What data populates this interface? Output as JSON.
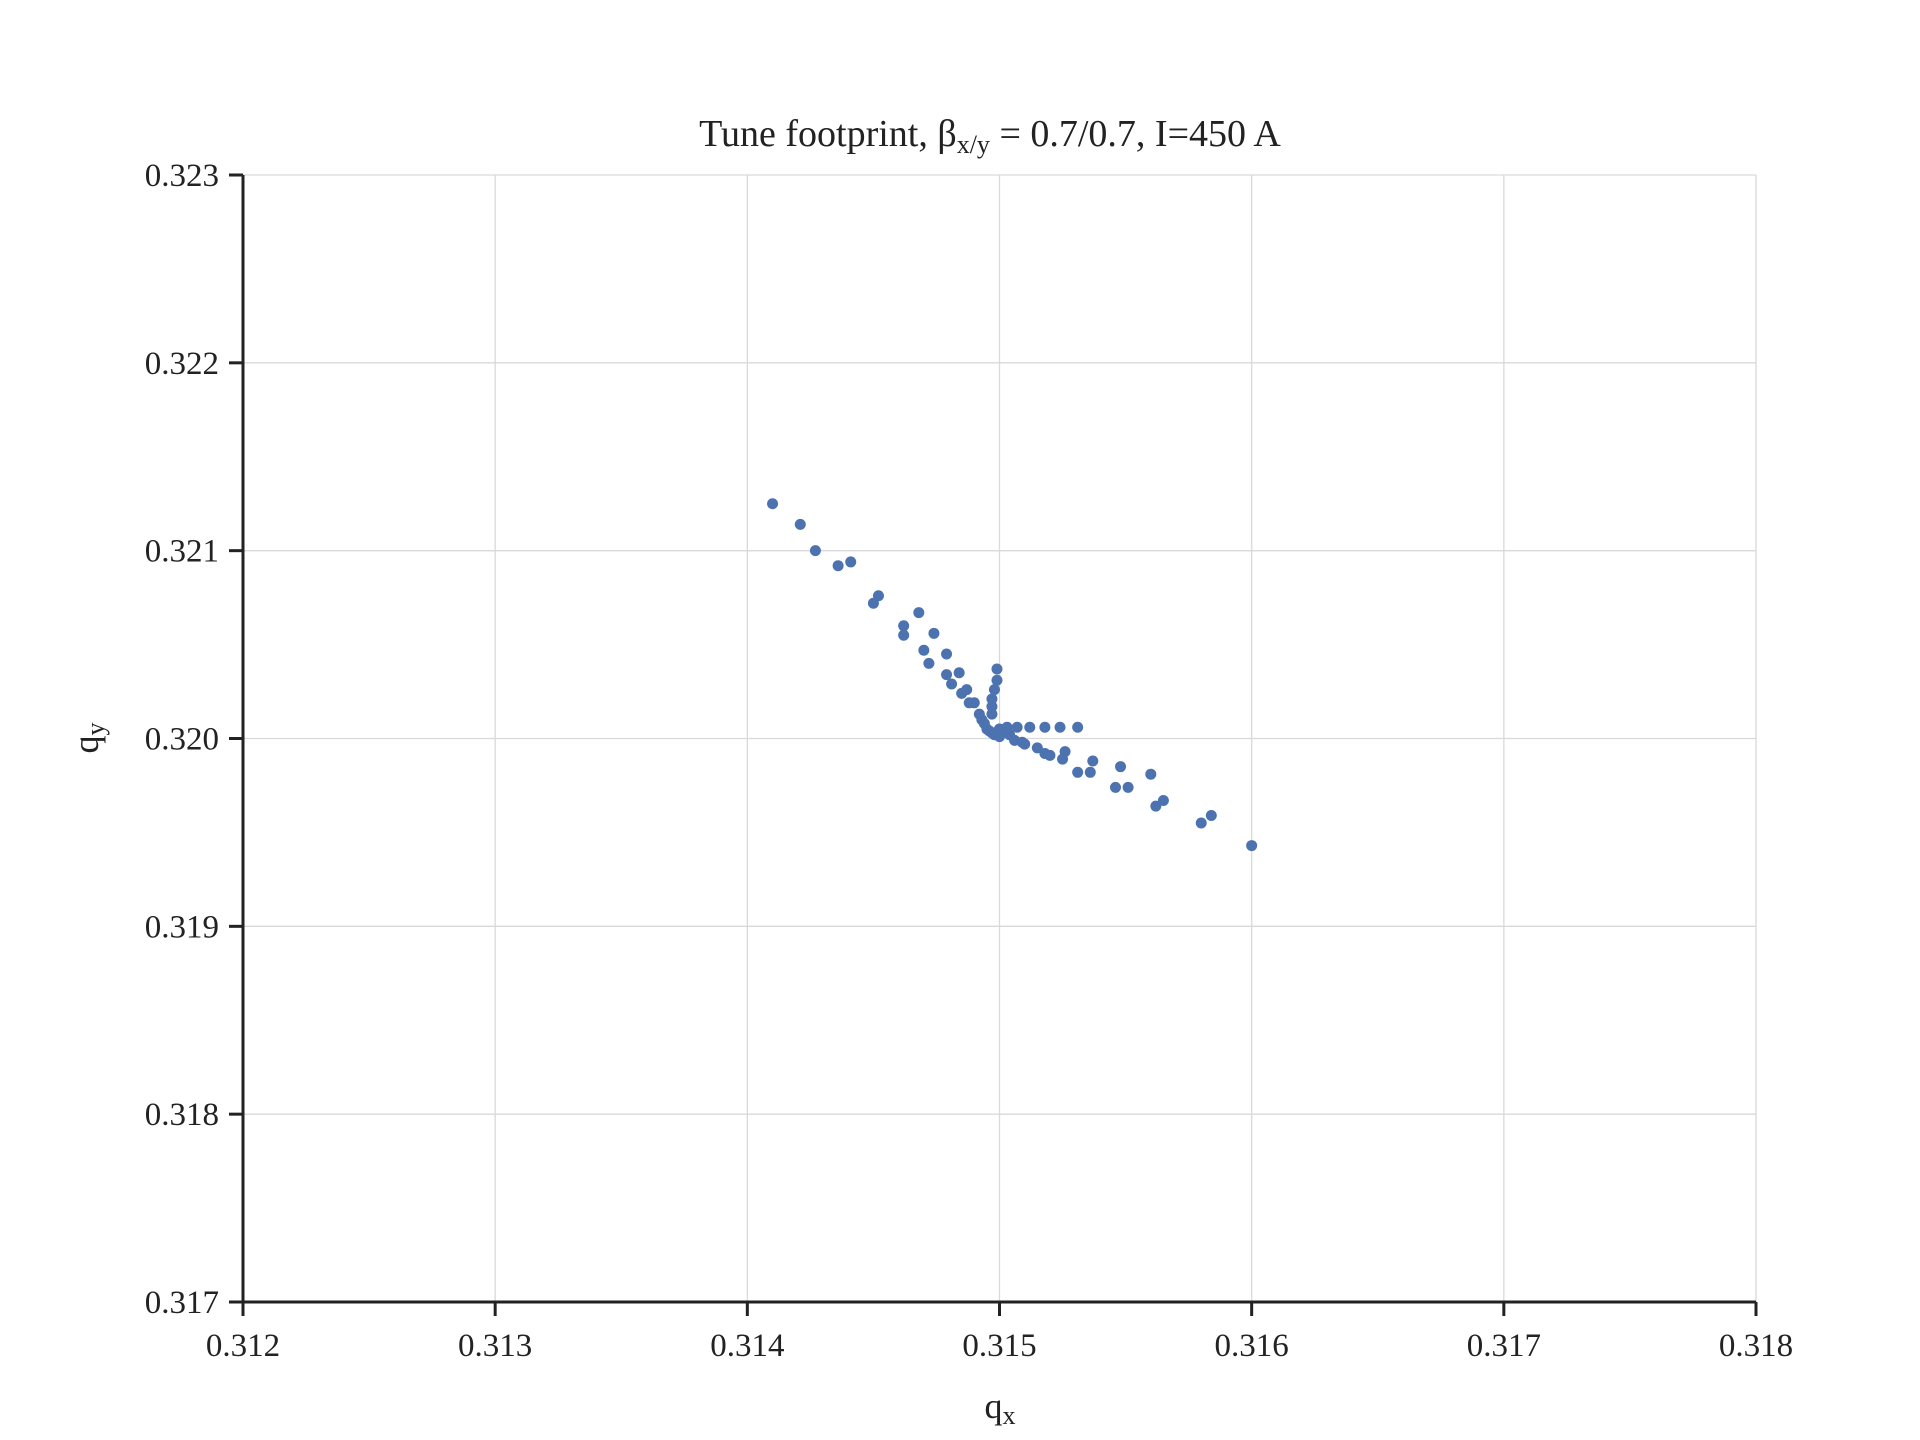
{
  "chart_data": {
    "type": "scatter",
    "title": {
      "prefix": "Tune footprint, ",
      "beta": "β",
      "beta_sub": "x/y",
      "suffix": " = 0.7/0.7, I=450 A"
    },
    "xlabel": {
      "base": "q",
      "sub": "x"
    },
    "ylabel": {
      "base": "q",
      "sub": "y"
    },
    "xlim": [
      0.312,
      0.318
    ],
    "ylim": [
      0.317,
      0.323
    ],
    "xticks": [
      "0.312",
      "0.313",
      "0.314",
      "0.315",
      "0.316",
      "0.317",
      "0.318"
    ],
    "yticks": [
      "0.317",
      "0.318",
      "0.319",
      "0.320",
      "0.321",
      "0.322",
      "0.323"
    ],
    "grid": true,
    "marker_color": "#4c72b0",
    "series": [
      {
        "x": [
          0.3141,
          0.31421,
          0.31427,
          0.31436,
          0.31441,
          0.3145,
          0.31452,
          0.31462,
          0.31462,
          0.31468,
          0.3147,
          0.31472,
          0.31474,
          0.31479,
          0.31479,
          0.31481,
          0.31484,
          0.31485,
          0.31487,
          0.31488,
          0.3149,
          0.31492,
          0.31493,
          0.31494,
          0.31495,
          0.31496,
          0.31497,
          0.31498,
          0.31499,
          0.315,
          0.315,
          0.31502,
          0.31504,
          0.31506,
          0.31509,
          0.3151,
          0.31515,
          0.31518,
          0.3152,
          0.31525,
          0.31526,
          0.31531,
          0.31536,
          0.31537,
          0.31546,
          0.31548,
          0.31551,
          0.3156,
          0.31562,
          0.31565,
          0.3158,
          0.31584,
          0.316,
          0.31497,
          0.31497,
          0.31497,
          0.31498,
          0.31499,
          0.31499,
          0.315,
          0.315,
          0.31503,
          0.31507,
          0.31512,
          0.31518,
          0.31524,
          0.31531
        ],
        "y": [
          0.32125,
          0.32114,
          0.321,
          0.32092,
          0.32094,
          0.32072,
          0.32076,
          0.32055,
          0.3206,
          0.32067,
          0.32047,
          0.3204,
          0.32056,
          0.32034,
          0.32045,
          0.32029,
          0.32035,
          0.32024,
          0.32026,
          0.32019,
          0.32019,
          0.32013,
          0.3201,
          0.32008,
          0.32005,
          0.32004,
          0.32003,
          0.32002,
          0.32003,
          0.32001,
          0.32005,
          0.32004,
          0.32002,
          0.31999,
          0.31998,
          0.31997,
          0.31995,
          0.31992,
          0.31991,
          0.31989,
          0.31993,
          0.31982,
          0.31982,
          0.31988,
          0.31974,
          0.31985,
          0.31974,
          0.31981,
          0.31964,
          0.31967,
          0.31955,
          0.31959,
          0.31943,
          0.32013,
          0.32017,
          0.32021,
          0.32026,
          0.32031,
          0.32037,
          0.32005,
          0.32005,
          0.32006,
          0.32006,
          0.32006,
          0.32006,
          0.32006,
          0.32006
        ]
      }
    ]
  }
}
